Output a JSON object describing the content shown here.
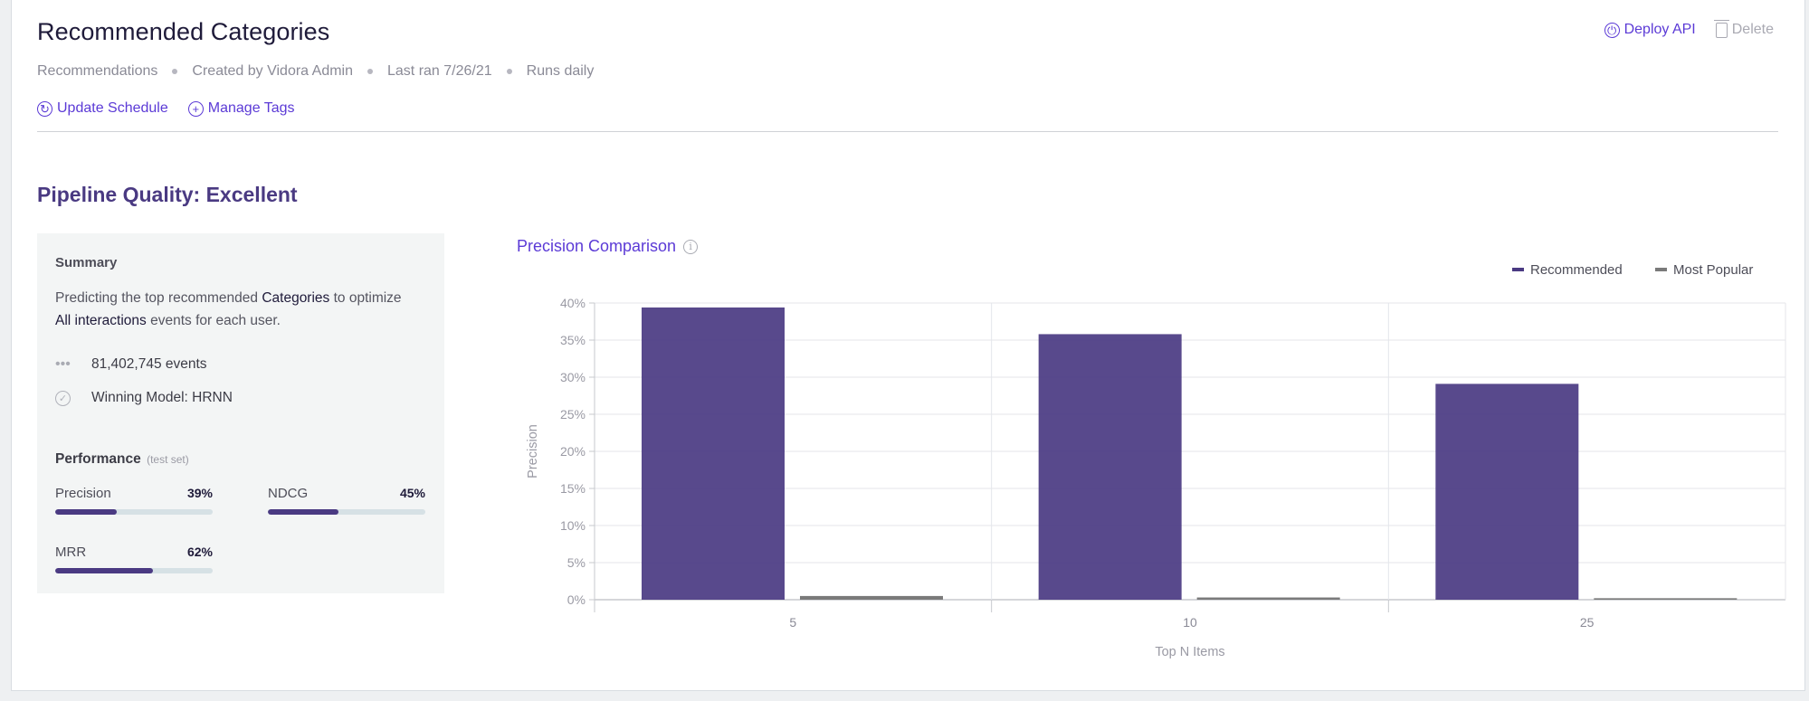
{
  "header": {
    "title": "Recommended Categories",
    "meta": [
      "Recommendations",
      "Created by Vidora Admin",
      "Last ran 7/26/21",
      "Runs daily"
    ],
    "actions": {
      "update_schedule": "Update Schedule",
      "manage_tags": "Manage Tags"
    },
    "deploy_api": "Deploy API",
    "delete": "Delete"
  },
  "quality": {
    "title": "Pipeline Quality: Excellent"
  },
  "summary": {
    "heading": "Summary",
    "desc_prefix": "Predicting the top recommended ",
    "desc_entity": "Categories",
    "desc_middle": " to optimize ",
    "desc_event": "All interactions",
    "desc_suffix": " events for each user.",
    "events": "81,402,745 events",
    "model": "Winning Model: HRNN",
    "performance_label": "Performance",
    "performance_note": "(test set)",
    "metrics": [
      {
        "label": "Precision",
        "value_text": "39%",
        "value": 39
      },
      {
        "label": "NDCG",
        "value_text": "45%",
        "value": 45
      },
      {
        "label": "MRR",
        "value_text": "62%",
        "value": 62
      }
    ]
  },
  "colors": {
    "accent": "#5b3ad6",
    "recommended": "#4a3a82",
    "most_popular": "#7a7a7a"
  },
  "chart_data": {
    "type": "bar",
    "title": "Precision Comparison",
    "categories": [
      "5",
      "10",
      "25"
    ],
    "series": [
      {
        "name": "Recommended",
        "values": [
          39.4,
          35.8,
          29.1
        ]
      },
      {
        "name": "Most Popular",
        "values": [
          0.5,
          0.3,
          0.2
        ]
      }
    ],
    "xlabel": "Top N Items",
    "ylabel": "Precision",
    "ylim": [
      0,
      40
    ],
    "yticks": [
      "0%",
      "5%",
      "10%",
      "15%",
      "20%",
      "25%",
      "30%",
      "35%",
      "40%"
    ],
    "grid": true,
    "legend": "top-right"
  }
}
